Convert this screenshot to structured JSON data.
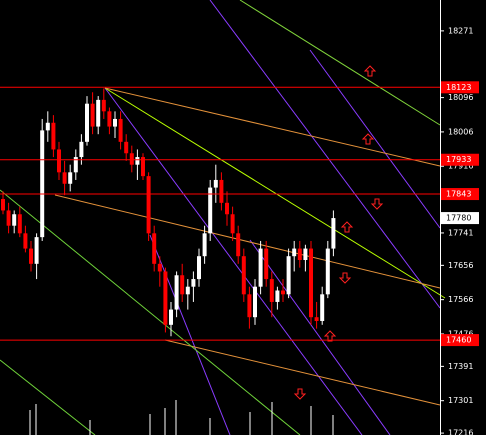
{
  "chart_data": {
    "type": "candlestick",
    "open": [
      17830,
      17800,
      17760,
      17790,
      17740,
      17700,
      17660,
      17730,
      18010,
      18030,
      17960,
      17900,
      17870,
      17900,
      17940,
      17980,
      18080,
      18020,
      18090,
      18060,
      18020,
      18040,
      17980,
      17950,
      17920,
      17940,
      17890,
      17740,
      17660,
      17640,
      17500,
      17540,
      17630,
      17580,
      17600,
      17620,
      17680,
      17740,
      17860,
      17880,
      17820,
      17790,
      17740,
      17680,
      17580,
      17520,
      17600,
      17700,
      17620,
      17560,
      17590,
      17580,
      17680,
      17700,
      17670,
      17700,
      17520,
      17510,
      17580,
      17700
    ],
    "high": [
      17850,
      17820,
      17800,
      17810,
      17760,
      17720,
      17740,
      18040,
      18060,
      18050,
      17980,
      17930,
      17920,
      17960,
      18000,
      18100,
      18110,
      18100,
      18120,
      18070,
      18060,
      18060,
      18000,
      17970,
      17960,
      17950,
      17900,
      17760,
      17680,
      17650,
      17560,
      17640,
      17660,
      17620,
      17640,
      17700,
      17760,
      17880,
      17920,
      17900,
      17850,
      17810,
      17760,
      17700,
      17600,
      17620,
      17720,
      17720,
      17640,
      17600,
      17620,
      17700,
      17720,
      17720,
      17710,
      17720,
      17560,
      17600,
      17720,
      17800
    ],
    "low": [
      17790,
      17740,
      17740,
      17730,
      17690,
      17640,
      17620,
      17720,
      17980,
      17940,
      17880,
      17840,
      17850,
      17880,
      17920,
      17970,
      18000,
      18000,
      18040,
      18000,
      17990,
      17960,
      17930,
      17900,
      17880,
      17880,
      17720,
      17640,
      17600,
      17480,
      17470,
      17520,
      17560,
      17540,
      17560,
      17600,
      17660,
      17720,
      17820,
      17800,
      17760,
      17720,
      17660,
      17560,
      17490,
      17500,
      17580,
      17600,
      17520,
      17540,
      17560,
      17570,
      17640,
      17650,
      17640,
      17500,
      17490,
      17500,
      17570,
      17680
    ],
    "close": [
      17800,
      17760,
      17790,
      17740,
      17700,
      17660,
      17730,
      18010,
      18030,
      17960,
      17900,
      17870,
      17900,
      17940,
      17980,
      18080,
      18020,
      18090,
      18060,
      18020,
      18040,
      17980,
      17950,
      17920,
      17940,
      17890,
      17740,
      17660,
      17640,
      17500,
      17540,
      17630,
      17580,
      17600,
      17620,
      17680,
      17740,
      17860,
      17880,
      17820,
      17790,
      17740,
      17680,
      17580,
      17520,
      17600,
      17700,
      17620,
      17560,
      17590,
      17580,
      17680,
      17700,
      17670,
      17700,
      17520,
      17510,
      17580,
      17700,
      17780
    ],
    "up_color": "#ffffff",
    "down_color": "#ff0000",
    "ylim": [
      17211,
      18352
    ],
    "yticks": [
      18271,
      18096,
      18006,
      17916,
      17741,
      17656,
      17566,
      17476,
      17391,
      17301,
      17216
    ],
    "levels": [
      18123,
      17933,
      17843,
      17460
    ],
    "level_color": "#ff0000",
    "last_price": 17780
  }
}
